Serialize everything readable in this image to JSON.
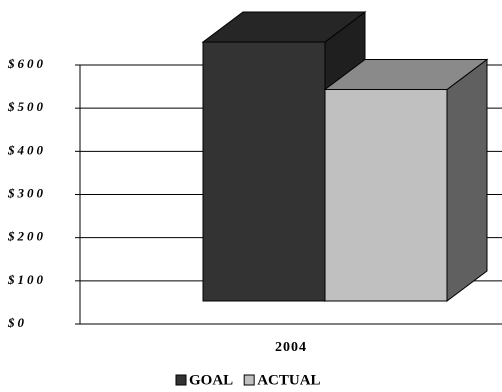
{
  "chart_data": {
    "type": "bar3d",
    "categories": [
      "2004"
    ],
    "series": [
      {
        "name": "GOAL",
        "color": "#333333",
        "values": [
          600
        ]
      },
      {
        "name": "ACTUAL",
        "color": "#c0c0c0",
        "values": [
          490
        ]
      }
    ],
    "ylim": [
      0,
      600
    ],
    "yticks": [
      {
        "value": 0,
        "label": "$0"
      },
      {
        "value": 100,
        "label": "$100"
      },
      {
        "value": 200,
        "label": "$200"
      },
      {
        "value": 300,
        "label": "$300"
      },
      {
        "value": 400,
        "label": "$400"
      },
      {
        "value": 500,
        "label": "$500"
      },
      {
        "value": 600,
        "label": "$600"
      }
    ],
    "grid": true,
    "legend": "bottom"
  }
}
